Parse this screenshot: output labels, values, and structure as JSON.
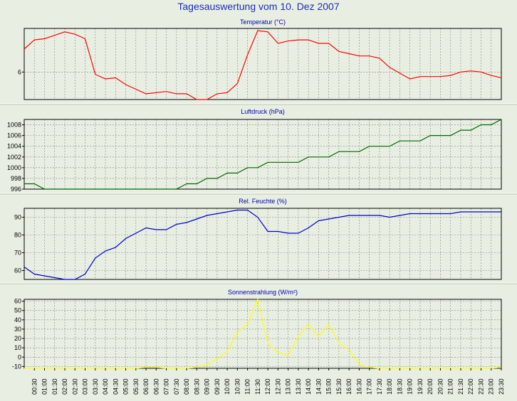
{
  "title": "Tagesauswertung vom 10. Dez 2007",
  "x_labels": [
    "00:30",
    "01:00",
    "01:30",
    "02:00",
    "02:30",
    "03:00",
    "03:30",
    "04:00",
    "04:30",
    "05:00",
    "05:30",
    "06:00",
    "06:30",
    "07:00",
    "07:30",
    "08:00",
    "08:30",
    "09:00",
    "09:30",
    "10:00",
    "10:30",
    "11:00",
    "11:30",
    "12:00",
    "12:30",
    "13:00",
    "13:30",
    "14:00",
    "14:30",
    "15:00",
    "15:30",
    "16:00",
    "16:30",
    "17:00",
    "17:30",
    "18:00",
    "18:30",
    "19:00",
    "19:30",
    "20:00",
    "20:30",
    "21:00",
    "21:30",
    "22:00",
    "22:30",
    "23:00",
    "23:30"
  ],
  "chart_data": [
    {
      "type": "line",
      "title": "Temperatur (°C)",
      "color": "#ff0000",
      "ylim": [
        4.8,
        7.9
      ],
      "yticks": [
        6
      ],
      "grid": true,
      "x": [
        "00:00",
        "00:30",
        "01:00",
        "01:30",
        "02:00",
        "02:30",
        "03:00",
        "03:30",
        "04:00",
        "04:30",
        "05:00",
        "05:30",
        "06:00",
        "06:30",
        "07:00",
        "07:30",
        "08:00",
        "08:30",
        "09:00",
        "09:30",
        "10:00",
        "10:30",
        "11:00",
        "11:30",
        "12:00",
        "12:30",
        "13:00",
        "13:30",
        "14:00",
        "14:30",
        "15:00",
        "15:30",
        "16:00",
        "16:30",
        "17:00",
        "17:30",
        "18:00",
        "18:30",
        "19:00",
        "19:30",
        "20:00",
        "20:30",
        "21:00",
        "21:30",
        "22:00",
        "22:30",
        "23:00",
        "23:30"
      ],
      "values": [
        7.0,
        7.4,
        7.45,
        7.6,
        7.75,
        7.65,
        7.45,
        5.9,
        5.7,
        5.75,
        5.45,
        5.25,
        5.05,
        5.1,
        5.15,
        5.05,
        5.05,
        4.8,
        4.8,
        5.05,
        5.1,
        5.5,
        6.75,
        7.8,
        7.75,
        7.25,
        7.35,
        7.4,
        7.4,
        7.25,
        7.25,
        6.9,
        6.8,
        6.7,
        6.7,
        6.6,
        6.2,
        5.95,
        5.7,
        5.8,
        5.8,
        5.8,
        5.85,
        6.0,
        6.05,
        6.0,
        5.85,
        5.75
      ]
    },
    {
      "type": "line",
      "title": "Luftdruck (hPa)",
      "color": "#006600",
      "ylim": [
        996,
        1009
      ],
      "yticks": [
        996,
        998,
        1000,
        1002,
        1004,
        1006,
        1008
      ],
      "grid": true,
      "x": [
        "00:00",
        "00:30",
        "01:00",
        "01:30",
        "02:00",
        "02:30",
        "03:00",
        "03:30",
        "04:00",
        "04:30",
        "05:00",
        "05:30",
        "06:00",
        "06:30",
        "07:00",
        "07:30",
        "08:00",
        "08:30",
        "09:00",
        "09:30",
        "10:00",
        "10:30",
        "11:00",
        "11:30",
        "12:00",
        "12:30",
        "13:00",
        "13:30",
        "14:00",
        "14:30",
        "15:00",
        "15:30",
        "16:00",
        "16:30",
        "17:00",
        "17:30",
        "18:00",
        "18:30",
        "19:00",
        "19:30",
        "20:00",
        "20:30",
        "21:00",
        "21:30",
        "22:00",
        "22:30",
        "23:00",
        "23:30"
      ],
      "values": [
        997,
        997,
        996,
        996,
        996,
        996,
        996,
        996,
        996,
        996,
        996,
        996,
        996,
        996,
        996,
        996,
        997,
        997,
        998,
        998,
        999,
        999,
        1000,
        1000,
        1001,
        1001,
        1001,
        1001,
        1002,
        1002,
        1002,
        1003,
        1003,
        1003,
        1004,
        1004,
        1004,
        1005,
        1005,
        1005,
        1006,
        1006,
        1006,
        1007,
        1007,
        1008,
        1008,
        1009
      ]
    },
    {
      "type": "line",
      "title": "Rel. Feuchte (%)",
      "color": "#0000cc",
      "ylim": [
        55,
        95
      ],
      "yticks": [
        60,
        70,
        80,
        90
      ],
      "grid": true,
      "x": [
        "00:00",
        "00:30",
        "01:00",
        "01:30",
        "02:00",
        "02:30",
        "03:00",
        "03:30",
        "04:00",
        "04:30",
        "05:00",
        "05:30",
        "06:00",
        "06:30",
        "07:00",
        "07:30",
        "08:00",
        "08:30",
        "09:00",
        "09:30",
        "10:00",
        "10:30",
        "11:00",
        "11:30",
        "12:00",
        "12:30",
        "13:00",
        "13:30",
        "14:00",
        "14:30",
        "15:00",
        "15:30",
        "16:00",
        "16:30",
        "17:00",
        "17:30",
        "18:00",
        "18:30",
        "19:00",
        "19:30",
        "20:00",
        "20:30",
        "21:00",
        "21:30",
        "22:00",
        "22:30",
        "23:00",
        "23:30"
      ],
      "values": [
        62,
        58,
        57,
        56,
        55,
        55,
        58,
        67,
        71,
        73,
        78,
        81,
        84,
        83,
        83,
        86,
        87,
        89,
        91,
        92,
        93,
        94,
        94,
        90,
        82,
        82,
        81,
        81,
        84,
        88,
        89,
        90,
        91,
        91,
        91,
        91,
        90,
        91,
        92,
        92,
        92,
        92,
        92,
        93,
        93,
        93,
        93,
        93
      ]
    },
    {
      "type": "line",
      "title": "Sonnenstrahlung (W/m²)",
      "color": "#ffff00",
      "ylim": [
        -12,
        62
      ],
      "yticks": [
        -10,
        0,
        10,
        20,
        30,
        40,
        50,
        60
      ],
      "grid": true,
      "x": [
        "00:00",
        "00:30",
        "01:00",
        "01:30",
        "02:00",
        "02:30",
        "03:00",
        "03:30",
        "04:00",
        "04:30",
        "05:00",
        "05:30",
        "06:00",
        "06:30",
        "07:00",
        "07:30",
        "08:00",
        "08:30",
        "09:00",
        "09:30",
        "10:00",
        "10:30",
        "11:00",
        "11:30",
        "12:00",
        "12:30",
        "13:00",
        "13:30",
        "14:00",
        "14:30",
        "15:00",
        "15:30",
        "16:00",
        "16:30",
        "17:00",
        "17:30",
        "18:00",
        "18:30",
        "19:00",
        "19:30",
        "20:00",
        "20:30",
        "21:00",
        "21:30",
        "22:00",
        "22:30",
        "23:00",
        "23:30"
      ],
      "values": [
        -12,
        -12,
        -12,
        -12,
        -12,
        -12,
        -12,
        -12,
        -12,
        -12,
        -12,
        -12,
        -11,
        -11,
        -12,
        -12,
        -12,
        -11,
        -8,
        -2,
        6,
        26,
        35,
        62,
        15,
        5,
        2,
        22,
        35,
        22,
        35,
        15,
        8,
        -8,
        -11,
        -12,
        -12,
        -12,
        -12,
        -12,
        -12,
        -12,
        -12,
        -12,
        -12,
        -12,
        -12,
        -11
      ]
    }
  ]
}
